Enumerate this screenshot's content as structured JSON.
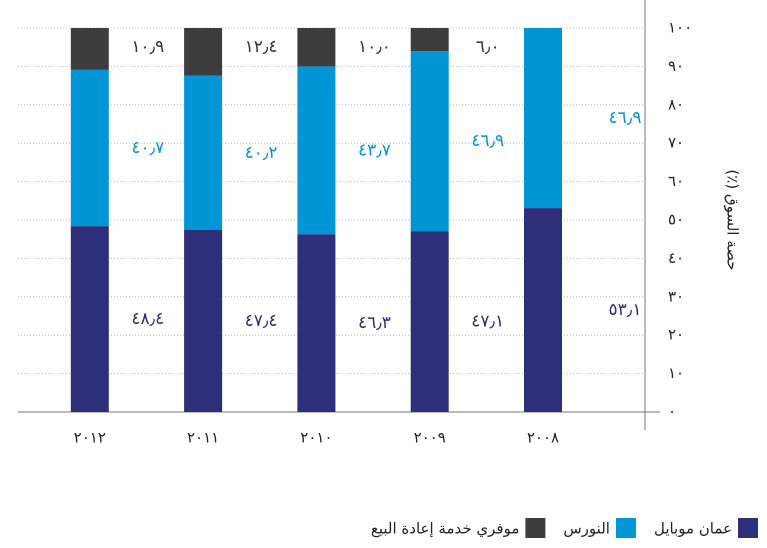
{
  "chart_data": {
    "type": "stacked_bar",
    "y_label": "(٪) حصة السوق",
    "categories": [
      "٢٠٠٨",
      "٢٠٠٩",
      "٢٠١٠",
      "٢٠١١",
      "٢٠١٢"
    ],
    "series": [
      {
        "name": "عمان موبايل",
        "color": "#2e2f7a",
        "values": [
          53.1,
          47.1,
          46.3,
          47.4,
          48.4
        ],
        "value_labels": [
          "٥٣٫١",
          "٤٧٫١",
          "٤٦٫٣",
          "٤٧٫٤",
          "٤٨٫٤"
        ]
      },
      {
        "name": "النورس",
        "color": "#0096d6",
        "values": [
          46.9,
          46.9,
          43.7,
          40.2,
          40.7
        ],
        "value_labels": [
          "٤٦٫٩",
          "٤٦٫٩",
          "٤٣٫٧",
          "٤٠٫٢",
          "٤٠٫٧"
        ]
      },
      {
        "name": "موفري خدمة إعادة البيع",
        "color": "#3d3d3d",
        "values": [
          null,
          6.0,
          10.0,
          12.4,
          10.9
        ],
        "value_labels": [
          null,
          "٦٫٠",
          "١٠٫٠",
          "١٢٫٤",
          "١٠٫٩"
        ]
      }
    ],
    "ylim": [
      0,
      100
    ],
    "yticks": [
      {
        "value": 0,
        "label": "٠"
      },
      {
        "value": 10,
        "label": "١٠"
      },
      {
        "value": 20,
        "label": "٢٠"
      },
      {
        "value": 30,
        "label": "٣٠"
      },
      {
        "value": 40,
        "label": "٤٠"
      },
      {
        "value": 50,
        "label": "٥٠"
      },
      {
        "value": 60,
        "label": "٦٠"
      },
      {
        "value": 70,
        "label": "٧٠"
      },
      {
        "value": 80,
        "label": "٨٠"
      },
      {
        "value": 90,
        "label": "٩٠"
      },
      {
        "value": 100,
        "label": "١٠٠"
      }
    ],
    "grid": true
  }
}
